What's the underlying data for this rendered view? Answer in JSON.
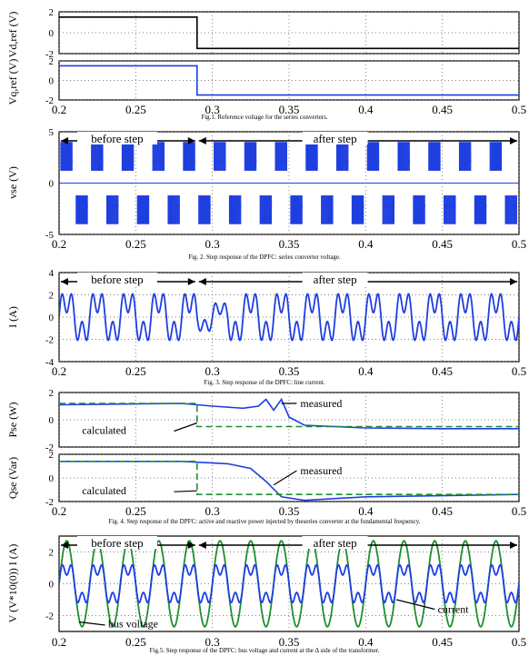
{
  "colors": {
    "blue": "#1f3fe0",
    "green": "#1e8f2e",
    "black": "#000000"
  },
  "chart_data": [
    {
      "id": "ref_top",
      "type": "line",
      "ylabel": "Vd,ref (V)",
      "xlim": [
        0.2,
        0.5
      ],
      "ylim": [
        -2,
        2
      ],
      "yticks": [
        "2",
        "0",
        "-2"
      ],
      "xticks": [],
      "series": [
        {
          "x": [
            0.2,
            0.29,
            0.29,
            0.5
          ],
          "y": [
            1.5,
            1.5,
            -1.5,
            -1.5
          ],
          "color": "#000000"
        }
      ]
    },
    {
      "id": "ref_bot",
      "type": "line",
      "ylabel": "Vq,ref (V)",
      "xlim": [
        0.2,
        0.5
      ],
      "ylim": [
        -2,
        2
      ],
      "yticks": [
        "2",
        "0",
        "-2"
      ],
      "xticks": [
        "0.2",
        "0.25",
        "0.3",
        "0.35",
        "0.4",
        "0.45",
        "0.5"
      ],
      "series": [
        {
          "x": [
            0.2,
            0.29,
            0.29,
            0.5
          ],
          "y": [
            1.5,
            1.5,
            -1.5,
            -1.5
          ],
          "color": "#1f3fe0"
        }
      ],
      "caption": "Fig.1. Reference voltage for the series converters."
    },
    {
      "id": "vse",
      "type": "line",
      "ylabel": "vse (V)",
      "xlim": [
        0.2,
        0.5
      ],
      "ylim": [
        -5,
        5
      ],
      "yticks": [
        "5",
        "0",
        "-5"
      ],
      "xticks": [
        "0.2",
        "0.25",
        "0.3",
        "0.35",
        "0.4",
        "0.45",
        "0.5"
      ],
      "series": [
        {
          "waveform": "pwm_bursts",
          "amplitude": 4,
          "period": 0.02,
          "color": "#1f3fe0"
        }
      ],
      "annotations": [
        "before step",
        "after step"
      ],
      "caption": "Fig. 2. Step response of the DPFC: series converter voltage."
    },
    {
      "id": "line_current",
      "type": "line",
      "ylabel": "I (A)",
      "xlim": [
        0.2,
        0.5
      ],
      "ylim": [
        -4,
        4
      ],
      "yticks": [
        "4",
        "2",
        "0",
        "-2",
        "-4"
      ],
      "xticks": [
        "0.2",
        "0.25",
        "0.3",
        "0.35",
        "0.4",
        "0.45",
        "0.5"
      ],
      "series": [
        {
          "waveform": "sin_3rd_harmonic",
          "fundamental_amp": 1.6,
          "harmonic_amp": 1.2,
          "period": 0.02,
          "color": "#1f3fe0"
        }
      ],
      "annotations": [
        "before step",
        "after step"
      ],
      "caption": "Fig. 3. Step response of the DPFC: line current."
    },
    {
      "id": "pse",
      "type": "line",
      "ylabel": "Pse (W)",
      "xlim": [
        0.2,
        0.5
      ],
      "ylim": [
        -2,
        2
      ],
      "yticks": [
        "2",
        "0",
        "-2"
      ],
      "xticks": [],
      "series": [
        {
          "name": "measured",
          "x": [
            0.2,
            0.28,
            0.3,
            0.32,
            0.33,
            0.335,
            0.34,
            0.345,
            0.35,
            0.36,
            0.38,
            0.4,
            0.45,
            0.5
          ],
          "y": [
            1.1,
            1.2,
            1.0,
            0.85,
            1.0,
            1.5,
            0.7,
            1.5,
            0.2,
            -0.4,
            -0.5,
            -0.6,
            -0.65,
            -0.65
          ],
          "color": "#1f3fe0"
        },
        {
          "name": "calculated",
          "x": [
            0.2,
            0.29,
            0.29,
            0.5
          ],
          "y": [
            1.2,
            1.2,
            -0.5,
            -0.5
          ],
          "color": "#1e8f2e",
          "dashed": true
        }
      ],
      "annotations": [
        "measured",
        "calculated"
      ]
    },
    {
      "id": "qse",
      "type": "line",
      "ylabel": "Qse (Var)",
      "xlim": [
        0.2,
        0.5
      ],
      "ylim": [
        -2,
        2
      ],
      "yticks": [
        "2",
        "0",
        "-2"
      ],
      "xticks": [
        "0.2",
        "0.25",
        "0.3",
        "0.35",
        "0.4",
        "0.45",
        "0.5"
      ],
      "series": [
        {
          "name": "measured",
          "x": [
            0.2,
            0.28,
            0.31,
            0.325,
            0.335,
            0.345,
            0.36,
            0.4,
            0.5
          ],
          "y": [
            1.4,
            1.4,
            1.2,
            0.8,
            -0.3,
            -1.6,
            -1.9,
            -1.6,
            -1.4
          ],
          "color": "#1f3fe0"
        },
        {
          "name": "calculated",
          "x": [
            0.2,
            0.29,
            0.29,
            0.5
          ],
          "y": [
            1.4,
            1.4,
            -1.4,
            -1.4
          ],
          "color": "#1e8f2e",
          "dashed": true
        }
      ],
      "annotations": [
        "measured",
        "calculated"
      ],
      "caption": "Fig. 4. Step response of the DPFC: active and reactive power injected by theseries converter at the fundamental frequency."
    },
    {
      "id": "bus",
      "type": "line",
      "ylabel": "V (V*10(0)) I (A)",
      "xlim": [
        0.2,
        0.5
      ],
      "ylim": [
        -3,
        3
      ],
      "yticks": [
        "2",
        "0",
        "-2"
      ],
      "xticks": [
        "0.2",
        "0.25",
        "0.3",
        "0.35",
        "0.4",
        "0.45",
        "0.5"
      ],
      "series": [
        {
          "name": "bus voltage",
          "waveform": "sine",
          "amplitude": 2.7,
          "period": 0.02,
          "color": "#1e8f2e"
        },
        {
          "name": "current",
          "waveform": "sin_3rd_harmonic",
          "fundamental_amp": 1.1,
          "harmonic_amp": 0.55,
          "period": 0.02,
          "color": "#1f3fe0"
        }
      ],
      "annotations": [
        "before step",
        "after step",
        "current",
        "bus voltage"
      ],
      "caption": "Fig.5. Step response of the DPFC: bus voltage and current at the Δ side of the transformer."
    }
  ]
}
